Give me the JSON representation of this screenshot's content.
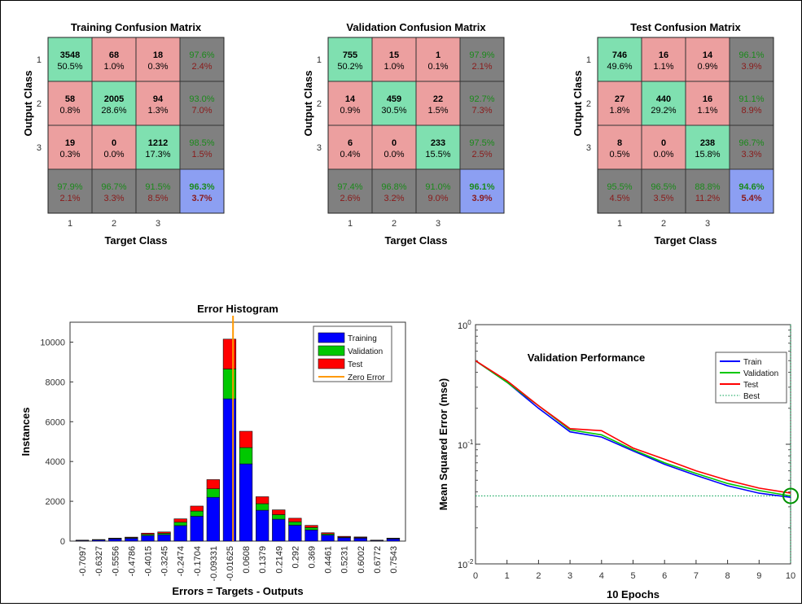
{
  "chart_data": [
    {
      "type": "heatmap",
      "title": "Training Confusion Matrix",
      "xlabel": "Target Class",
      "ylabel": "Output Class",
      "classes": [
        "1",
        "2",
        "3"
      ],
      "cells": [
        [
          [
            "3548",
            "50.5%"
          ],
          [
            "68",
            "1.0%"
          ],
          [
            "18",
            "0.3%"
          ],
          [
            "97.6%",
            "2.4%"
          ]
        ],
        [
          [
            "58",
            "0.8%"
          ],
          [
            "2005",
            "28.6%"
          ],
          [
            "94",
            "1.3%"
          ],
          [
            "93.0%",
            "7.0%"
          ]
        ],
        [
          [
            "19",
            "0.3%"
          ],
          [
            "0",
            "0.0%"
          ],
          [
            "1212",
            "17.3%"
          ],
          [
            "98.5%",
            "1.5%"
          ]
        ],
        [
          [
            "97.9%",
            "2.1%"
          ],
          [
            "96.7%",
            "3.3%"
          ],
          [
            "91.5%",
            "8.5%"
          ],
          [
            "96.3%",
            "3.7%"
          ]
        ]
      ]
    },
    {
      "type": "heatmap",
      "title": "Validation Confusion Matrix",
      "xlabel": "Target Class",
      "ylabel": "Output Class",
      "classes": [
        "1",
        "2",
        "3"
      ],
      "cells": [
        [
          [
            "755",
            "50.2%"
          ],
          [
            "15",
            "1.0%"
          ],
          [
            "1",
            "0.1%"
          ],
          [
            "97.9%",
            "2.1%"
          ]
        ],
        [
          [
            "14",
            "0.9%"
          ],
          [
            "459",
            "30.5%"
          ],
          [
            "22",
            "1.5%"
          ],
          [
            "92.7%",
            "7.3%"
          ]
        ],
        [
          [
            "6",
            "0.4%"
          ],
          [
            "0",
            "0.0%"
          ],
          [
            "233",
            "15.5%"
          ],
          [
            "97.5%",
            "2.5%"
          ]
        ],
        [
          [
            "97.4%",
            "2.6%"
          ],
          [
            "96.8%",
            "3.2%"
          ],
          [
            "91.0%",
            "9.0%"
          ],
          [
            "96.1%",
            "3.9%"
          ]
        ]
      ]
    },
    {
      "type": "heatmap",
      "title": "Test Confusion Matrix",
      "xlabel": "Target Class",
      "ylabel": "Output Class",
      "classes": [
        "1",
        "2",
        "3"
      ],
      "cells": [
        [
          [
            "746",
            "49.6%"
          ],
          [
            "16",
            "1.1%"
          ],
          [
            "14",
            "0.9%"
          ],
          [
            "96.1%",
            "3.9%"
          ]
        ],
        [
          [
            "27",
            "1.8%"
          ],
          [
            "440",
            "29.2%"
          ],
          [
            "16",
            "1.1%"
          ],
          [
            "91.1%",
            "8.9%"
          ]
        ],
        [
          [
            "8",
            "0.5%"
          ],
          [
            "0",
            "0.0%"
          ],
          [
            "238",
            "15.8%"
          ],
          [
            "96.7%",
            "3.3%"
          ]
        ],
        [
          [
            "95.5%",
            "4.5%"
          ],
          [
            "96.5%",
            "3.5%"
          ],
          [
            "88.8%",
            "11.2%"
          ],
          [
            "94.6%",
            "5.4%"
          ]
        ]
      ]
    },
    {
      "type": "bar",
      "stacked": true,
      "title": "Error Histogram",
      "xlabel": "Errors = Targets - Outputs",
      "ylabel": "Instances",
      "ylim": [
        0,
        11000
      ],
      "yticks": [
        0,
        2000,
        4000,
        6000,
        8000,
        10000
      ],
      "categories": [
        "-0.7097",
        "-0.6327",
        "-0.5556",
        "-0.4786",
        "-0.4015",
        "-0.3245",
        "-0.2474",
        "-0.1704",
        "-0.09331",
        "-0.01625",
        "0.0608",
        "0.1379",
        "0.2149",
        "0.292",
        "0.369",
        "0.4461",
        "0.5231",
        "0.6002",
        "0.6772",
        "0.7543"
      ],
      "series": [
        {
          "name": "Training",
          "color": "#0000ff",
          "values": [
            30,
            60,
            110,
            140,
            280,
            320,
            780,
            1250,
            2200,
            7150,
            3880,
            1550,
            1100,
            800,
            560,
            300,
            170,
            150,
            30,
            110
          ]
        },
        {
          "name": "Validation",
          "color": "#00c800",
          "values": [
            10,
            10,
            20,
            30,
            60,
            70,
            170,
            260,
            430,
            1500,
            820,
            330,
            230,
            170,
            120,
            60,
            30,
            30,
            10,
            20
          ]
        },
        {
          "name": "Test",
          "color": "#ff0000",
          "values": [
            10,
            10,
            20,
            30,
            60,
            70,
            170,
            250,
            460,
            1500,
            820,
            350,
            240,
            180,
            110,
            60,
            40,
            30,
            10,
            20
          ]
        }
      ],
      "zero_error": {
        "name": "Zero Error",
        "color": "#ff9900",
        "x": 0
      },
      "legend": "top-right"
    },
    {
      "type": "line",
      "title": "Validation Performance",
      "xlabel": "10 Epochs",
      "ylabel": "Mean Squared Error  (mse)",
      "yscale": "log",
      "xlim": [
        0,
        10
      ],
      "ylim": [
        0.01,
        1
      ],
      "xticks": [
        0,
        1,
        2,
        3,
        4,
        5,
        6,
        7,
        8,
        9,
        10
      ],
      "yticks": [
        {
          "base": "10",
          "exp": "0"
        },
        {
          "base": "10",
          "exp": "-1"
        },
        {
          "base": "10",
          "exp": "-2"
        }
      ],
      "x": [
        0,
        1,
        2,
        3,
        4,
        5,
        6,
        7,
        8,
        9,
        10
      ],
      "series": [
        {
          "name": "Train",
          "color": "#0000ff",
          "values": [
            0.5,
            0.33,
            0.2,
            0.127,
            0.115,
            0.088,
            0.068,
            0.055,
            0.045,
            0.039,
            0.036
          ]
        },
        {
          "name": "Validation",
          "color": "#00c800",
          "values": [
            0.5,
            0.33,
            0.21,
            0.132,
            0.12,
            0.09,
            0.07,
            0.057,
            0.047,
            0.041,
            0.037
          ]
        },
        {
          "name": "Test",
          "color": "#ff0000",
          "values": [
            0.5,
            0.34,
            0.21,
            0.135,
            0.13,
            0.093,
            0.075,
            0.06,
            0.05,
            0.043,
            0.039
          ]
        },
        {
          "name": "Best",
          "color": "#00a050",
          "style": "dotted",
          "value": 0.037,
          "epoch": 10
        }
      ],
      "legend": "top-right"
    }
  ]
}
